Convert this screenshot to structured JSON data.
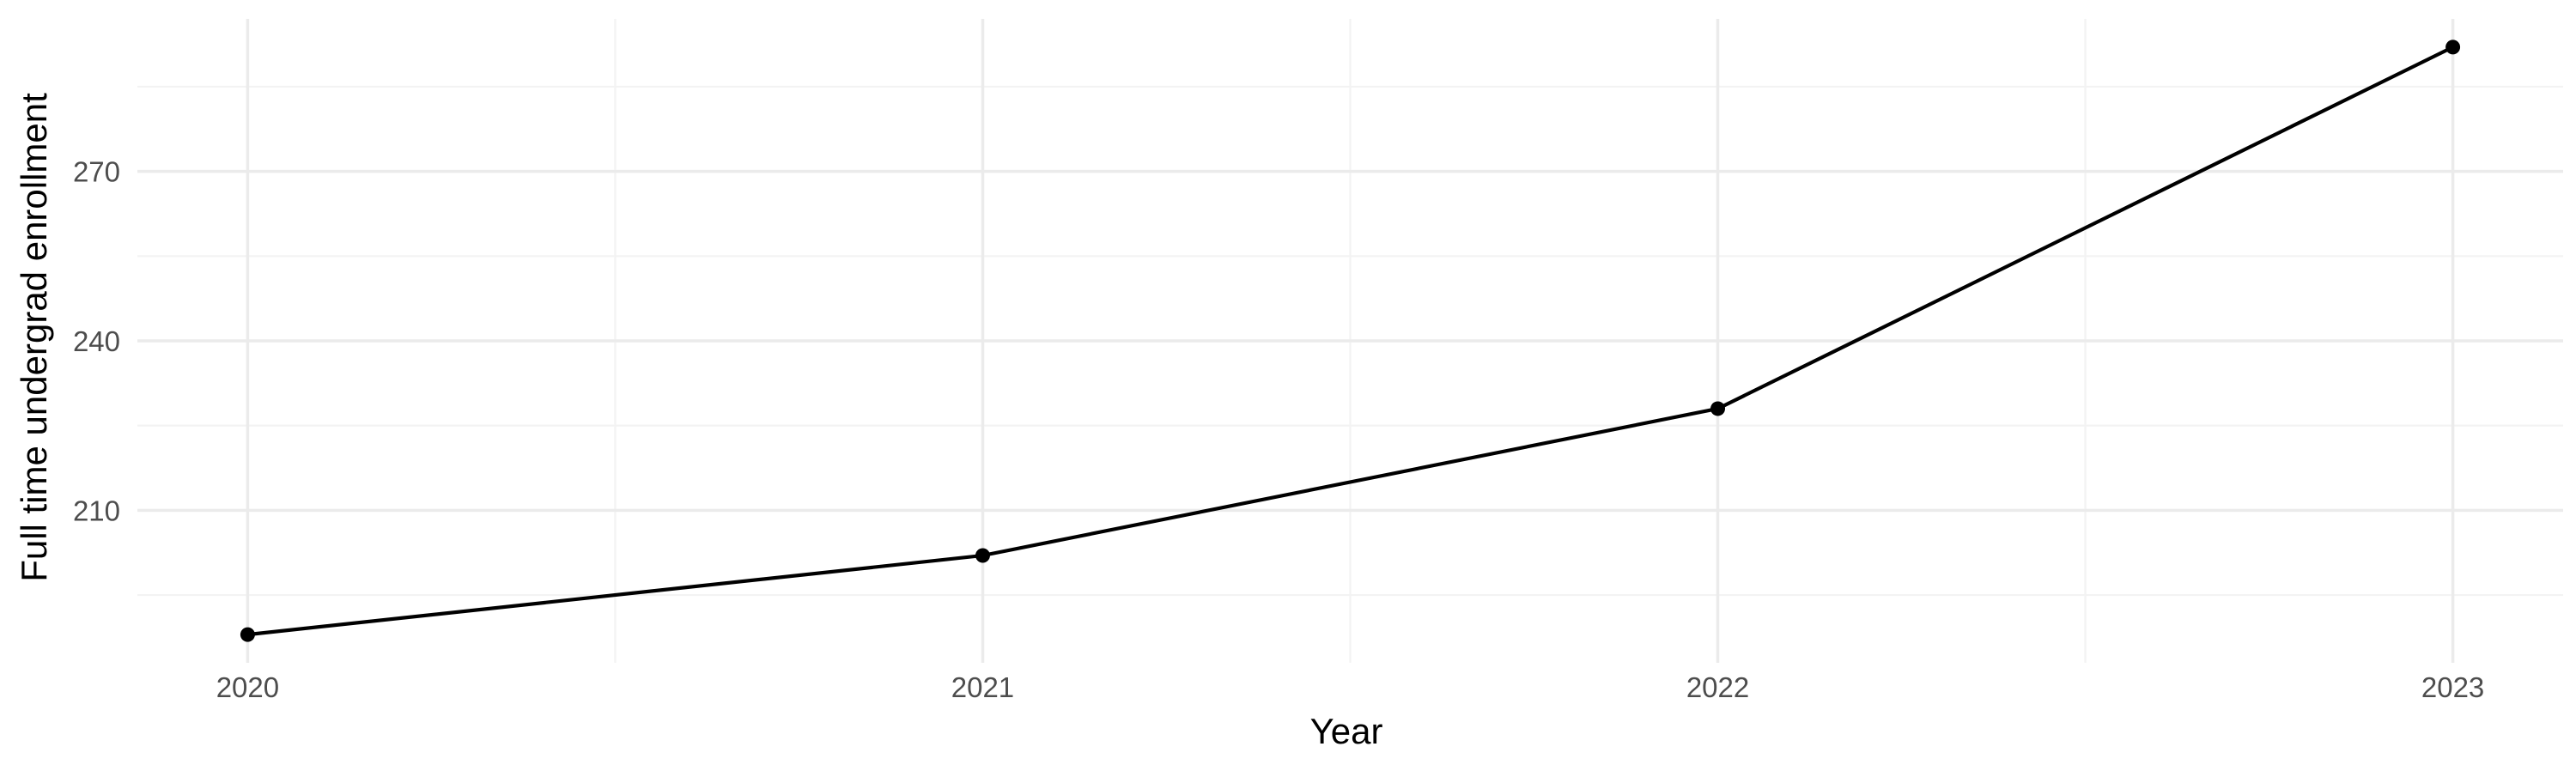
{
  "chart_data": {
    "type": "line",
    "title": "",
    "xlabel": "Year",
    "ylabel": "Full time undergrad enrollment",
    "x": [
      2020,
      2021,
      2022,
      2023
    ],
    "series": [
      {
        "values": [
          188,
          202,
          228,
          292
        ]
      }
    ],
    "xlim": [
      2019.85,
      2023.15
    ],
    "ylim": [
      183,
      297
    ],
    "x_ticks": [
      2020,
      2021,
      2022,
      2023
    ],
    "x_tick_labels": [
      "2020",
      "2021",
      "2022",
      "2023"
    ],
    "y_ticks": [
      210,
      240,
      270
    ],
    "y_tick_labels": [
      "210",
      "240",
      "270"
    ],
    "x_minor_ticks": [
      2020.5,
      2021.5,
      2022.5
    ],
    "y_minor_ticks": [
      195,
      225,
      255,
      285
    ],
    "grid": true,
    "legend": "none",
    "line_color": "#000000",
    "grid_color": "#ebebeb",
    "background_color": "#ffffff"
  }
}
